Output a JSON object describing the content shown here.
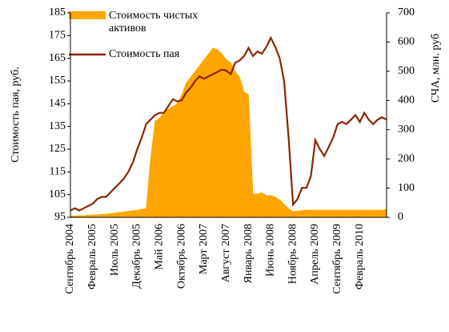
{
  "chart_data": {
    "type": "area_line",
    "y_label": "Стоимость пая, руб.",
    "y2_label": "СЧА, млн. руб",
    "categories": [
      "Сентябрь 2004",
      null,
      null,
      null,
      null,
      "Февраль 2005",
      null,
      null,
      null,
      null,
      "Июль 2005",
      null,
      null,
      null,
      null,
      "Декабрь 2005",
      null,
      null,
      null,
      null,
      "Май 2006",
      null,
      null,
      null,
      null,
      "Октябрь 2006",
      null,
      null,
      null,
      null,
      "Март 2007",
      null,
      null,
      null,
      null,
      "Август 2007",
      null,
      null,
      null,
      null,
      "Январь 2008",
      null,
      null,
      null,
      null,
      "Июнь 2008",
      null,
      null,
      null,
      null,
      "Ноябрь 2008",
      null,
      null,
      null,
      null,
      "Апрель 2009",
      null,
      null,
      null,
      null,
      "Сентябрь 2009",
      null,
      null,
      null,
      null,
      "Февраль 2010",
      null,
      null,
      null,
      null,
      null,
      null
    ],
    "series": [
      {
        "name": "Стоимость чистых активов",
        "color": "#ffa500",
        "axis": "y2",
        "values": [
          5,
          5,
          6,
          6,
          8,
          8,
          9,
          10,
          12,
          13,
          15,
          17,
          19,
          21,
          23,
          25,
          28,
          30,
          200,
          330,
          340,
          360,
          370,
          380,
          390,
          420,
          460,
          480,
          500,
          520,
          540,
          560,
          580,
          575,
          560,
          540,
          530,
          500,
          480,
          430,
          420,
          80,
          80,
          85,
          75,
          75,
          70,
          60,
          45,
          30,
          20,
          22,
          24,
          25,
          25,
          25,
          25,
          25,
          25,
          25,
          25,
          25,
          25,
          25,
          25,
          25,
          25,
          25,
          25,
          25,
          25,
          28
        ]
      },
      {
        "name": "Стоимость пая",
        "color": "#8b2500",
        "values": [
          98,
          99,
          98,
          99,
          100,
          101,
          103,
          104,
          104,
          106,
          108,
          110,
          112,
          115,
          119,
          125,
          130,
          136,
          138,
          140,
          141,
          141,
          144,
          147,
          146,
          146.5,
          150,
          152,
          155,
          157,
          156,
          157,
          158,
          159,
          160,
          159.6,
          158,
          163,
          164,
          166,
          169.5,
          166,
          168,
          167,
          170,
          174,
          170,
          165,
          155,
          130,
          100.6,
          103,
          108,
          108,
          113,
          129,
          125,
          122,
          126,
          130,
          136,
          137,
          136,
          138,
          140,
          137,
          141,
          138,
          136,
          138,
          139,
          138
        ]
      }
    ],
    "ylim": [
      95,
      185
    ],
    "yticks": [
      95,
      105,
      115,
      125,
      135,
      145,
      155,
      165,
      175,
      185
    ],
    "y2lim": [
      0,
      700
    ],
    "y2ticks": [
      0,
      100,
      200,
      300,
      400,
      500,
      600,
      700
    ],
    "legend": "upper-left"
  }
}
